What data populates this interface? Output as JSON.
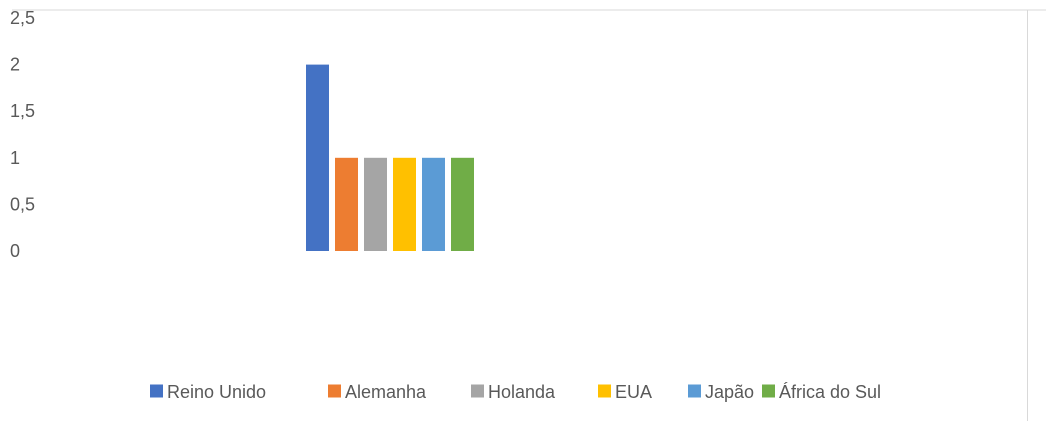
{
  "chart_data": {
    "type": "bar",
    "title": "",
    "xlabel": "",
    "ylabel": "",
    "ylim": [
      0,
      2.5
    ],
    "yticks": [
      "0",
      "0,5",
      "1",
      "1,5",
      "2",
      "2,5"
    ],
    "grid": false,
    "legend_position": "bottom",
    "categories": [
      ""
    ],
    "series": [
      {
        "name": "Reino Unido",
        "values": [
          2
        ],
        "color": "#4472C4"
      },
      {
        "name": "Alemanha",
        "values": [
          1
        ],
        "color": "#ED7D31"
      },
      {
        "name": "Holanda",
        "values": [
          1
        ],
        "color": "#A5A5A5"
      },
      {
        "name": "EUA",
        "values": [
          1
        ],
        "color": "#FFC000"
      },
      {
        "name": "Japão",
        "values": [
          1
        ],
        "color": "#5B9BD5"
      },
      {
        "name": "África do Sul",
        "values": [
          1
        ],
        "color": "#70AD47"
      }
    ]
  }
}
